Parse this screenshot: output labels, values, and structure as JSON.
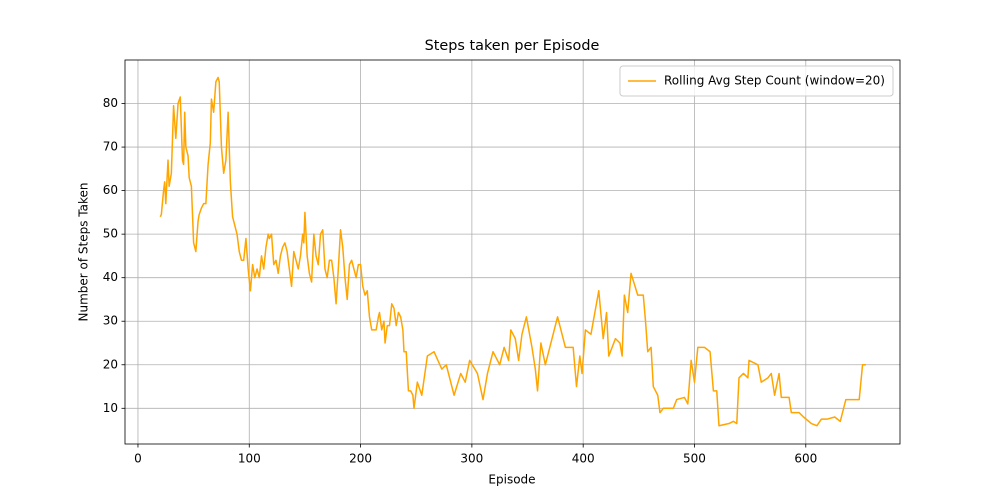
{
  "chart_data": {
    "type": "line",
    "title": "Steps taken per Episode",
    "x_label": "Episode",
    "y_label": "Number of Steps Taken",
    "xlim": [
      -11.65,
      684.65
    ],
    "ylim": [
      1.8,
      90.0
    ],
    "xticks": [
      0,
      100,
      200,
      300,
      400,
      500,
      600
    ],
    "yticks": [
      10,
      20,
      30,
      40,
      50,
      60,
      70,
      80
    ],
    "grid": true,
    "legend": "upper right",
    "x": [
      20,
      21,
      23,
      24,
      25,
      27,
      28,
      30,
      32,
      34,
      36,
      38,
      40,
      41,
      42,
      43,
      45,
      46,
      48,
      50,
      52,
      54,
      55,
      57,
      59,
      61,
      63,
      65,
      66,
      68,
      70,
      72,
      73,
      75,
      77,
      79,
      81,
      83,
      85,
      87,
      89,
      91,
      93,
      95,
      97,
      99,
      101,
      103,
      105,
      107,
      109,
      111,
      113,
      115,
      117,
      118,
      120,
      122,
      124,
      126,
      128,
      130,
      132,
      134,
      136,
      138,
      140,
      142,
      144,
      146,
      148,
      149,
      150,
      152,
      154,
      156,
      158,
      160,
      162,
      164,
      166,
      168,
      170,
      172,
      174,
      176,
      178,
      180,
      182,
      184,
      186,
      188,
      190,
      192,
      194,
      196,
      198,
      200,
      202,
      204,
      206,
      208,
      210,
      212,
      214,
      216,
      217,
      219,
      221,
      222,
      224,
      226,
      228,
      230,
      232,
      234,
      236,
      238,
      239,
      241,
      243,
      245,
      247,
      248,
      251,
      255,
      260,
      266,
      273,
      277,
      284,
      290,
      294,
      298,
      305,
      310,
      314,
      317,
      319,
      325,
      329,
      333,
      335,
      339,
      342,
      345,
      349,
      354,
      357,
      359,
      362,
      366,
      375,
      377,
      384,
      391,
      394,
      397,
      399,
      402,
      407,
      414,
      418,
      421,
      423,
      429,
      433,
      435,
      437,
      440,
      443,
      449,
      454,
      456,
      458,
      461,
      463,
      467,
      469,
      472,
      481,
      484,
      491,
      494,
      497,
      500,
      503,
      509,
      514,
      517,
      520,
      522,
      531,
      535,
      538,
      540,
      544,
      548,
      549,
      557,
      560,
      566,
      569,
      572,
      576,
      578,
      585,
      587,
      594,
      598,
      605,
      610,
      614,
      619,
      626,
      631,
      636,
      643,
      648,
      651,
      654
    ],
    "series": [
      {
        "name": "Rolling Avg Step Count (window=20)",
        "color": "#ffa500",
        "values": [
          54,
          54.5,
          60,
          62,
          57,
          67,
          61,
          64,
          79.5,
          72,
          80,
          81.5,
          67,
          66,
          78,
          70,
          68,
          63,
          61,
          48,
          46,
          53,
          54.5,
          56,
          57,
          57,
          66,
          71,
          81,
          78,
          85,
          86,
          85,
          70,
          64,
          67,
          78,
          62,
          54,
          52,
          50,
          46,
          44,
          44,
          49,
          42,
          37,
          43,
          40,
          42,
          40,
          45,
          42,
          47,
          50,
          49,
          50,
          43,
          44,
          41,
          45,
          47,
          48,
          46,
          42,
          38,
          46,
          44,
          42,
          45,
          50,
          48,
          55,
          45,
          41,
          39,
          50,
          45,
          43,
          50,
          51,
          42,
          40,
          44,
          44,
          40,
          34,
          42,
          51,
          47,
          40,
          35,
          43,
          44,
          42,
          40,
          43,
          43,
          38,
          36,
          37,
          31,
          28,
          28,
          28,
          31,
          32,
          28,
          30,
          25,
          29,
          29,
          34,
          33,
          29,
          32,
          31,
          28,
          23,
          23,
          14,
          14,
          13,
          10,
          16,
          13,
          22,
          23,
          19,
          20,
          13,
          18,
          16,
          21,
          18,
          12,
          18,
          21,
          23,
          20,
          24,
          21,
          28,
          26,
          21,
          27,
          31,
          24,
          19,
          14,
          25,
          20,
          29,
          31,
          24,
          24,
          15,
          22,
          18,
          28,
          27,
          37,
          26,
          32,
          22,
          26,
          25,
          22,
          36,
          32,
          41,
          36,
          36,
          30,
          23,
          24,
          15,
          13,
          9,
          10,
          10,
          12,
          12.5,
          11,
          21,
          16,
          24,
          24,
          23,
          14,
          14,
          6,
          6.5,
          7,
          6.5,
          17,
          18,
          17,
          21,
          20,
          16,
          17,
          18,
          13,
          18,
          12.5,
          12.5,
          9,
          9,
          8,
          6.5,
          6,
          7.5,
          7.5,
          8,
          7,
          12,
          12,
          12,
          20,
          20
        ]
      }
    ]
  }
}
